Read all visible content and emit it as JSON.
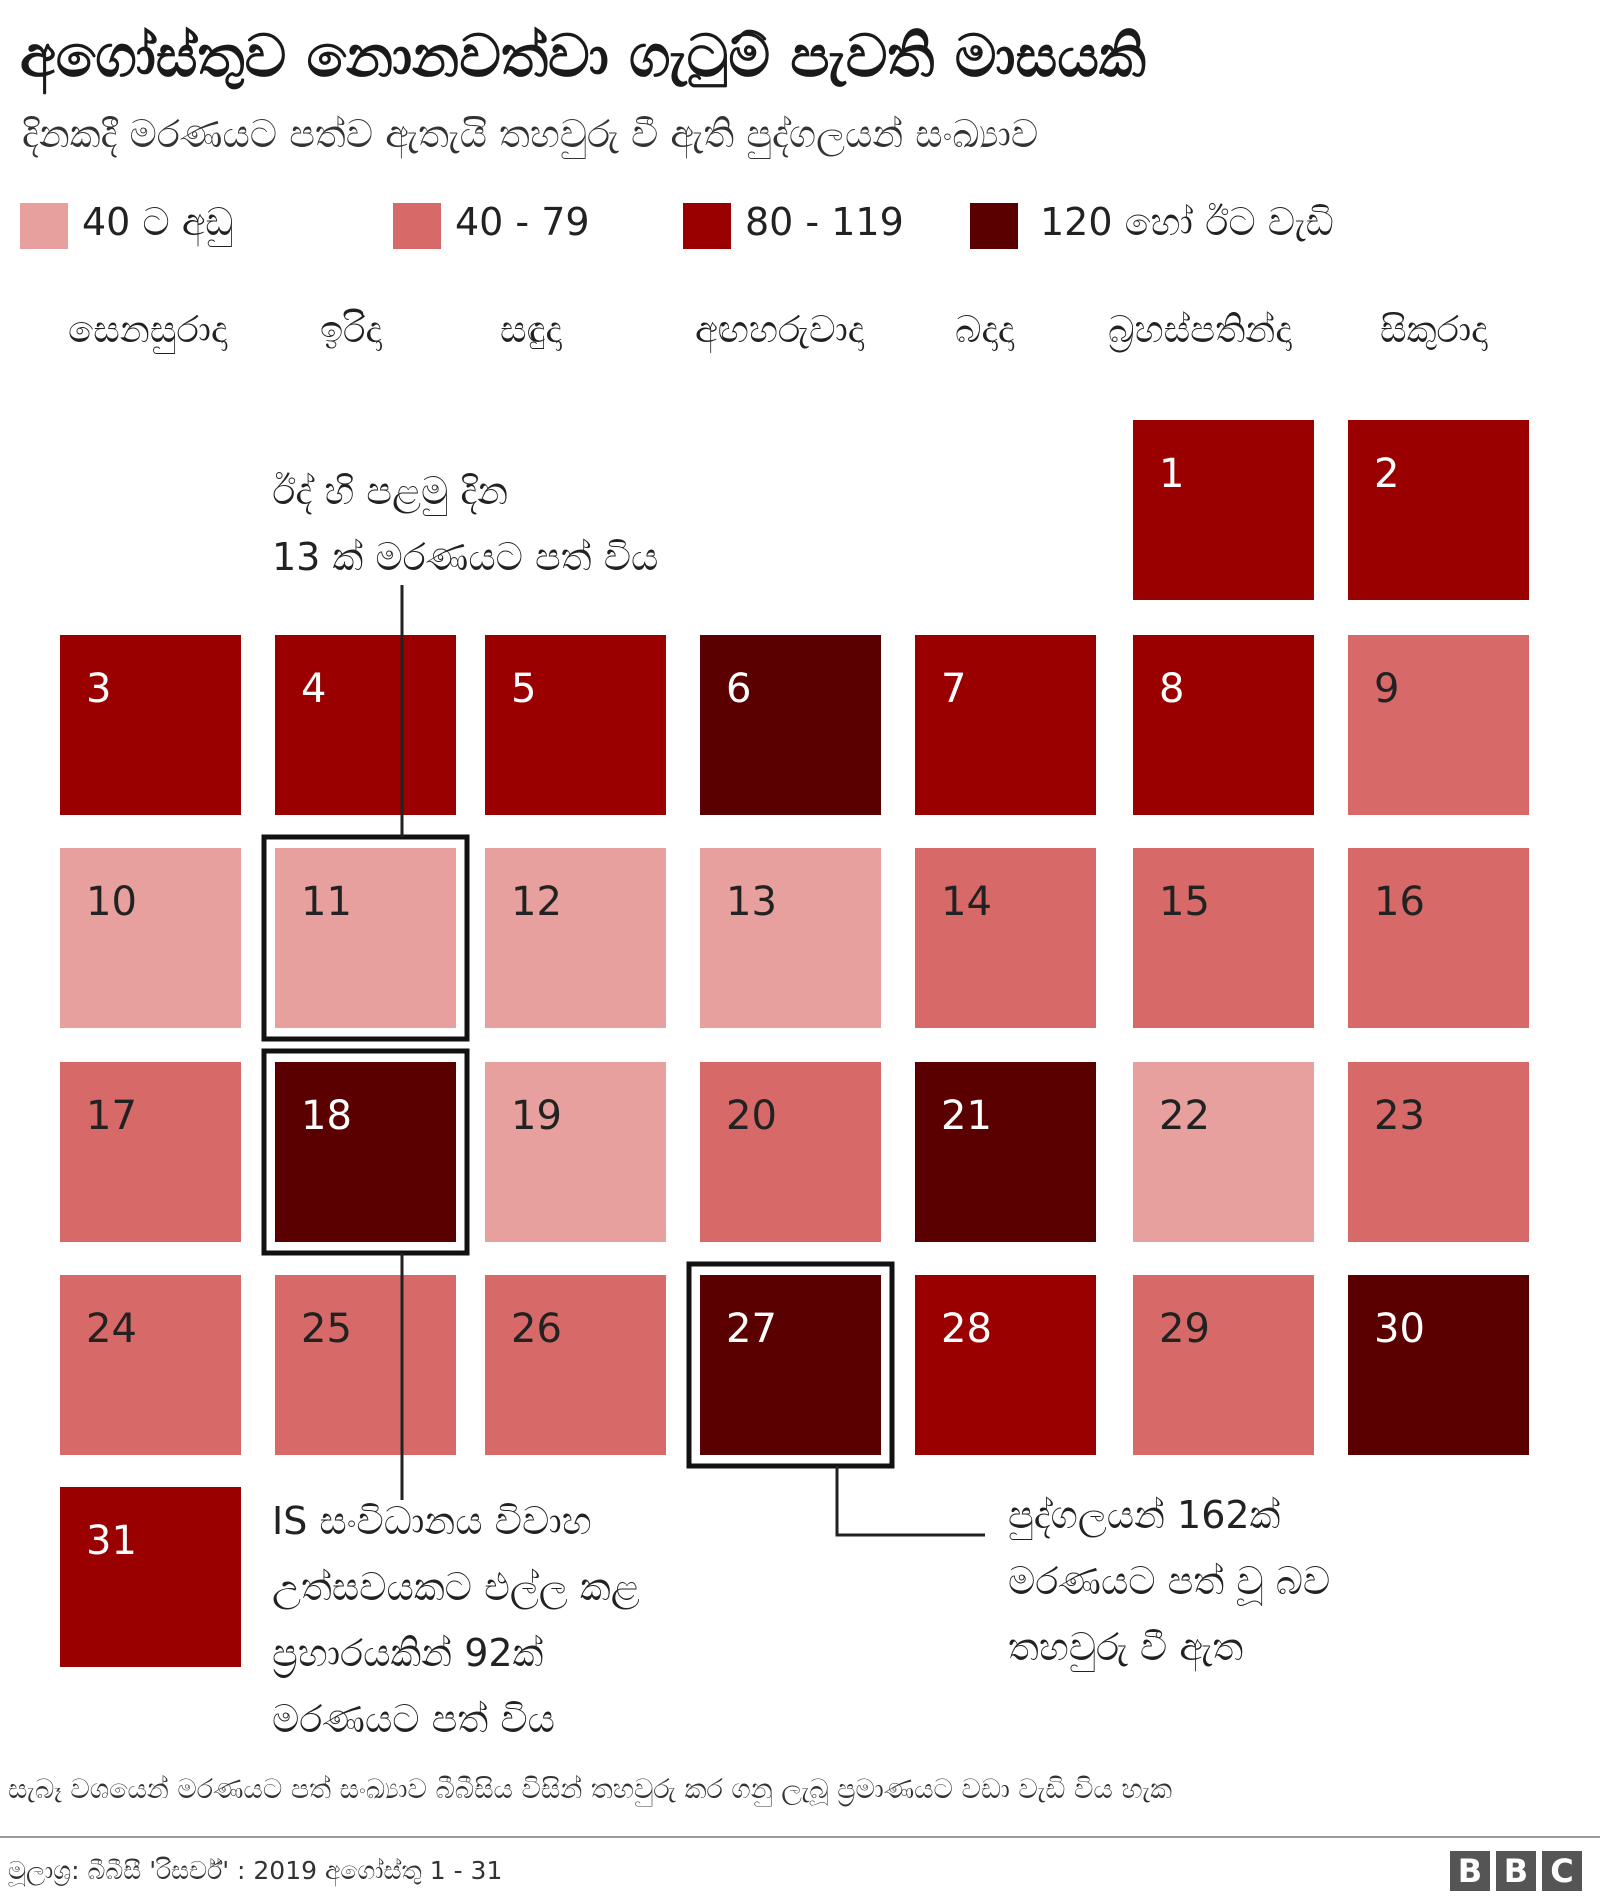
{
  "title": "අගෝස්තුව නොනවත්වා ගැටුම් පැවති මාසයකි",
  "subtitle": "දිනකදී මරණයට පත්ව ඇතැයි තහවුරු වී ඇති පුද්ගලයන් සංඛ්‍යාව",
  "legend": [
    {
      "label": "40 ට අඩු",
      "color": "#e8a09e"
    },
    {
      "label": "40 - 79",
      "color": "#d76a68"
    },
    {
      "label": "80 - 119",
      "color": "#9b0000"
    },
    {
      "label": "120 හෝ ඊට වැඩි",
      "color": "#5a0000"
    }
  ],
  "weekdays": [
    "සෙනසුරාදා",
    "ඉරිදා",
    "සඳුදා",
    "අඟහරුවාදා",
    "බදාදා",
    "බ්‍රහස්පතින්දා",
    "සිකුරාදා"
  ],
  "chart_data": {
    "type": "heatmap",
    "month": "2019 අගෝස්තු",
    "bins": [
      "40 ට අඩු",
      "40 - 79",
      "80 - 119",
      "120 හෝ ඊට වැඩි"
    ],
    "days": [
      {
        "day": "1",
        "bin": 2,
        "weekday": 5
      },
      {
        "day": "2",
        "bin": 2,
        "weekday": 6
      },
      {
        "day": "3",
        "bin": 2,
        "weekday": 0
      },
      {
        "day": "4",
        "bin": 2,
        "weekday": 1
      },
      {
        "day": "5",
        "bin": 2,
        "weekday": 2
      },
      {
        "day": "6",
        "bin": 3,
        "weekday": 3
      },
      {
        "day": "7",
        "bin": 2,
        "weekday": 4
      },
      {
        "day": "8",
        "bin": 2,
        "weekday": 5
      },
      {
        "day": "9",
        "bin": 1,
        "weekday": 6
      },
      {
        "day": "10",
        "bin": 0,
        "weekday": 0
      },
      {
        "day": "11",
        "bin": 0,
        "weekday": 1,
        "highlighted": true,
        "deaths": 13
      },
      {
        "day": "12",
        "bin": 0,
        "weekday": 2
      },
      {
        "day": "13",
        "bin": 0,
        "weekday": 3
      },
      {
        "day": "14",
        "bin": 1,
        "weekday": 4
      },
      {
        "day": "15",
        "bin": 1,
        "weekday": 5
      },
      {
        "day": "16",
        "bin": 1,
        "weekday": 6
      },
      {
        "day": "17",
        "bin": 1,
        "weekday": 0
      },
      {
        "day": "18",
        "bin": 3,
        "weekday": 1,
        "highlighted": true
      },
      {
        "day": "19",
        "bin": 0,
        "weekday": 2
      },
      {
        "day": "20",
        "bin": 1,
        "weekday": 3
      },
      {
        "day": "21",
        "bin": 3,
        "weekday": 4
      },
      {
        "day": "22",
        "bin": 0,
        "weekday": 5
      },
      {
        "day": "23",
        "bin": 1,
        "weekday": 6
      },
      {
        "day": "24",
        "bin": 1,
        "weekday": 0
      },
      {
        "day": "25",
        "bin": 1,
        "weekday": 1
      },
      {
        "day": "26",
        "bin": 1,
        "weekday": 2
      },
      {
        "day": "27",
        "bin": 3,
        "weekday": 3,
        "highlighted": true,
        "deaths": 162
      },
      {
        "day": "28",
        "bin": 2,
        "weekday": 4
      },
      {
        "day": "29",
        "bin": 1,
        "weekday": 5
      },
      {
        "day": "30",
        "bin": 3,
        "weekday": 6
      },
      {
        "day": "31",
        "bin": 2,
        "weekday": 0
      }
    ]
  },
  "annotations": {
    "day11": [
      "ඊද් හි පළමු දින",
      "13 ක් මරණයට පත් විය"
    ],
    "day18": [
      "IS සංවිධානය විවාහ",
      "උත්සවයකට එල්ල කළ",
      "ප්‍රහාරයකින් 92ක්",
      "මරණයට පත් විය"
    ],
    "day27": [
      "පුද්ගලයන් 162ක්",
      "මරණයට පත් වූ බව",
      "තහවුරු වී ඇත"
    ]
  },
  "footnote": "සැබෑ වශයෙන් මරණයට පත් සංඛ්‍යාව බීබීසිය විසින් තහවුරු කර ගනු ලැබූ ප්‍රමාණයට වඩා වැඩි විය හැක",
  "source": "මූලාශ්‍ර: බීබීසී 'රිසර්ච්' : 2019 අගෝස්තු 1 - 31",
  "logo": {
    "letters": [
      "B",
      "B",
      "C"
    ]
  },
  "text_color_light": "#ffffff",
  "text_color_dark": "#222222"
}
